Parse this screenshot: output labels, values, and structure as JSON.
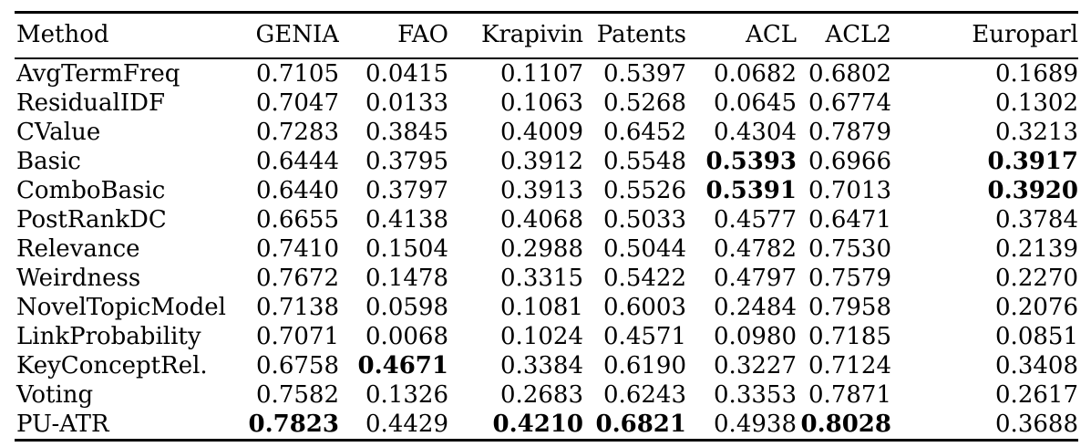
{
  "page": {
    "background_color": "#ffffff",
    "text_color": "#000000",
    "rule_color": "#000000"
  },
  "table": {
    "columns": [
      "Method",
      "GENIA",
      "FAO",
      "Krapivin",
      "Patents",
      "ACL",
      "ACL2",
      "Europarl"
    ],
    "rows": [
      {
        "cells": [
          "AvgTermFreq",
          "0.7105",
          "0.0415",
          "0.1107",
          "0.5397",
          "0.0682",
          "0.6802",
          "0.1689"
        ],
        "bold": []
      },
      {
        "cells": [
          "ResidualIDF",
          "0.7047",
          "0.0133",
          "0.1063",
          "0.5268",
          "0.0645",
          "0.6774",
          "0.1302"
        ],
        "bold": []
      },
      {
        "cells": [
          "CValue",
          "0.7283",
          "0.3845",
          "0.4009",
          "0.6452",
          "0.4304",
          "0.7879",
          "0.3213"
        ],
        "bold": []
      },
      {
        "cells": [
          "Basic",
          "0.6444",
          "0.3795",
          "0.3912",
          "0.5548",
          "0.5393",
          "0.6966",
          "0.3917"
        ],
        "bold": [
          5,
          7
        ]
      },
      {
        "cells": [
          "ComboBasic",
          "0.6440",
          "0.3797",
          "0.3913",
          "0.5526",
          "0.5391",
          "0.7013",
          "0.3920"
        ],
        "bold": [
          5,
          7
        ]
      },
      {
        "cells": [
          "PostRankDC",
          "0.6655",
          "0.4138",
          "0.4068",
          "0.5033",
          "0.4577",
          "0.6471",
          "0.3784"
        ],
        "bold": []
      },
      {
        "cells": [
          "Relevance",
          "0.7410",
          "0.1504",
          "0.2988",
          "0.5044",
          "0.4782",
          "0.7530",
          "0.2139"
        ],
        "bold": []
      },
      {
        "cells": [
          "Weirdness",
          "0.7672",
          "0.1478",
          "0.3315",
          "0.5422",
          "0.4797",
          "0.7579",
          "0.2270"
        ],
        "bold": []
      },
      {
        "cells": [
          "NovelTopicModel",
          "0.7138",
          "0.0598",
          "0.1081",
          "0.6003",
          "0.2484",
          "0.7958",
          "0.2076"
        ],
        "bold": []
      },
      {
        "cells": [
          "LinkProbability",
          "0.7071",
          "0.0068",
          "0.1024",
          "0.4571",
          "0.0980",
          "0.7185",
          "0.0851"
        ],
        "bold": []
      },
      {
        "cells": [
          "KeyConceptRel.",
          "0.6758",
          "0.4671",
          "0.3384",
          "0.6190",
          "0.3227",
          "0.7124",
          "0.3408"
        ],
        "bold": [
          2
        ]
      },
      {
        "cells": [
          "Voting",
          "0.7582",
          "0.1326",
          "0.2683",
          "0.6243",
          "0.3353",
          "0.7871",
          "0.2617"
        ],
        "bold": []
      },
      {
        "cells": [
          "PU-ATR",
          "0.7823",
          "0.4429",
          "0.4210",
          "0.6821",
          "0.4938",
          "0.8028",
          "0.3688"
        ],
        "bold": [
          1,
          3,
          4,
          6
        ]
      }
    ]
  }
}
